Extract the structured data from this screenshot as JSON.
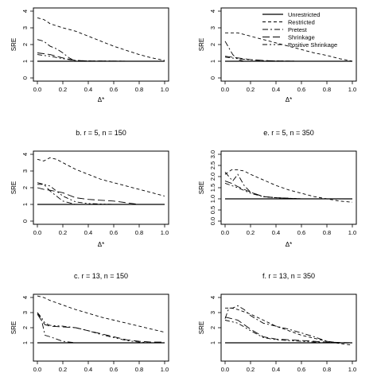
{
  "figure": {
    "legend_labels": [
      "Unrestricted",
      "Restricted",
      "Pretest",
      "Shrinkage",
      "Positive Shrinkage"
    ]
  },
  "chart_data": [
    {
      "type": "line",
      "title": "",
      "xlabel": "Δ*",
      "ylabel": "SRE",
      "xlim": [
        0,
        1
      ],
      "ylim": [
        0,
        4
      ],
      "x_ticks": [
        "0.0",
        "0.2",
        "0.4",
        "0.6",
        "0.8",
        "1.0"
      ],
      "y_ticks": [
        "0",
        "1",
        "2",
        "3",
        "4"
      ],
      "legend": false,
      "grid": false,
      "series": [
        {
          "name": "Unrestricted",
          "x": [
            0,
            1
          ],
          "y": [
            1,
            1
          ]
        },
        {
          "name": "Restricted",
          "x": [
            0,
            0.05,
            0.1,
            0.2,
            0.3,
            0.4,
            0.5,
            0.6,
            0.7,
            0.8,
            0.9,
            1.0
          ],
          "y": [
            3.6,
            3.5,
            3.25,
            3.0,
            2.8,
            2.5,
            2.2,
            1.9,
            1.65,
            1.4,
            1.2,
            1.05
          ]
        },
        {
          "name": "Pretest",
          "x": [
            0,
            0.05,
            0.1,
            0.15,
            0.2,
            0.25,
            0.3,
            0.4,
            0.6,
            0.8,
            1.0
          ],
          "y": [
            2.3,
            2.2,
            1.9,
            1.75,
            1.5,
            1.2,
            1.0,
            1.0,
            1.0,
            1.0,
            1.0
          ]
        },
        {
          "name": "Shrinkage",
          "x": [
            0,
            0.05,
            0.1,
            0.2,
            0.3,
            0.4,
            0.6,
            0.8,
            1.0
          ],
          "y": [
            1.5,
            1.45,
            1.4,
            1.2,
            1.05,
            1.02,
            1.01,
            1.0,
            1.0
          ]
        },
        {
          "name": "Positive Shrinkage",
          "x": [
            0,
            0.05,
            0.1,
            0.2,
            0.3,
            0.4,
            0.6,
            0.8,
            1.0
          ],
          "y": [
            1.4,
            1.35,
            1.3,
            1.15,
            1.05,
            1.02,
            1.01,
            1.0,
            1.0
          ]
        }
      ]
    },
    {
      "type": "line",
      "title": "b. r = 5, n = 150",
      "xlabel": "Δ*",
      "ylabel": "SRE",
      "xlim": [
        0,
        1
      ],
      "ylim": [
        0,
        4
      ],
      "x_ticks": [
        "0.0",
        "0.2",
        "0.4",
        "0.6",
        "0.8",
        "1.0"
      ],
      "y_ticks": [
        "0",
        "1",
        "2",
        "3",
        "4"
      ],
      "legend": false,
      "grid": false,
      "series": [
        {
          "name": "Unrestricted",
          "x": [
            0,
            1
          ],
          "y": [
            1,
            1
          ]
        },
        {
          "name": "Restricted",
          "x": [
            0,
            0.05,
            0.1,
            0.15,
            0.2,
            0.3,
            0.4,
            0.5,
            0.6,
            0.7,
            0.8,
            0.9,
            1.0
          ],
          "y": [
            3.7,
            3.6,
            3.8,
            3.7,
            3.5,
            3.1,
            2.8,
            2.5,
            2.3,
            2.1,
            1.9,
            1.7,
            1.5
          ]
        },
        {
          "name": "Pretest",
          "x": [
            0,
            0.05,
            0.1,
            0.15,
            0.2,
            0.3,
            0.4,
            0.6,
            0.8,
            1.0
          ],
          "y": [
            2.3,
            2.2,
            1.8,
            1.5,
            1.2,
            1.0,
            1.0,
            1.0,
            1.0,
            1.0
          ]
        },
        {
          "name": "Shrinkage",
          "x": [
            0,
            0.05,
            0.1,
            0.2,
            0.3,
            0.4,
            0.5,
            0.6,
            0.7,
            0.8,
            1.0
          ],
          "y": [
            2.0,
            1.9,
            1.85,
            1.7,
            1.4,
            1.3,
            1.25,
            1.2,
            1.1,
            1.0,
            1.0
          ]
        },
        {
          "name": "Positive Shrinkage",
          "x": [
            0,
            0.05,
            0.1,
            0.2,
            0.3,
            0.4,
            0.6,
            0.8,
            1.0
          ],
          "y": [
            2.2,
            2.2,
            2.1,
            1.5,
            1.15,
            1.05,
            1.0,
            1.0,
            1.0
          ]
        }
      ]
    },
    {
      "type": "line",
      "title": "c. r = 13, n = 150",
      "xlabel": "",
      "ylabel": "SRE",
      "xlim": [
        0,
        1
      ],
      "ylim": [
        0,
        4
      ],
      "x_ticks": [
        "0.0",
        "0.2",
        "0.4",
        "0.6",
        "0.8",
        "1.0"
      ],
      "y_ticks": [
        "1",
        "2",
        "3",
        "4"
      ],
      "legend": false,
      "grid": false,
      "series": [
        {
          "name": "Unrestricted",
          "x": [
            0,
            1
          ],
          "y": [
            1,
            1
          ]
        },
        {
          "name": "Restricted",
          "x": [
            0,
            0.05,
            0.1,
            0.2,
            0.3,
            0.4,
            0.5,
            0.6,
            0.7,
            0.8,
            0.9,
            1.0
          ],
          "y": [
            4.1,
            4.0,
            3.8,
            3.5,
            3.2,
            2.95,
            2.7,
            2.5,
            2.3,
            2.1,
            1.9,
            1.7
          ]
        },
        {
          "name": "Pretest",
          "x": [
            0,
            0.03,
            0.06,
            0.1,
            0.15,
            0.2,
            0.3,
            0.4,
            0.6,
            0.8,
            1.0
          ],
          "y": [
            3.0,
            2.6,
            1.5,
            1.4,
            1.25,
            1.1,
            1.0,
            1.0,
            1.0,
            1.0,
            1.0
          ]
        },
        {
          "name": "Shrinkage",
          "x": [
            0,
            0.03,
            0.06,
            0.1,
            0.2,
            0.3,
            0.4,
            0.5,
            0.6,
            0.7,
            0.8,
            0.9,
            1.0
          ],
          "y": [
            2.9,
            2.5,
            2.2,
            2.1,
            2.05,
            2.0,
            1.8,
            1.6,
            1.4,
            1.2,
            1.1,
            1.05,
            1.05
          ]
        },
        {
          "name": "Positive Shrinkage",
          "x": [
            0,
            0.03,
            0.06,
            0.1,
            0.2,
            0.3,
            0.4,
            0.5,
            0.6,
            0.7,
            0.8,
            0.9,
            1.0
          ],
          "y": [
            3.0,
            2.7,
            2.3,
            2.15,
            2.1,
            2.0,
            1.8,
            1.55,
            1.35,
            1.15,
            1.05,
            1.0,
            1.0
          ]
        }
      ]
    },
    {
      "type": "line",
      "title": "",
      "xlabel": "Δ*",
      "ylabel": "SRE",
      "xlim": [
        0,
        1
      ],
      "ylim": [
        0,
        4
      ],
      "x_ticks": [
        "0.0",
        "0.2",
        "0.4",
        "0.6",
        "0.8",
        "1.0"
      ],
      "y_ticks": [
        "0",
        "1",
        "2",
        "3",
        "4"
      ],
      "legend": true,
      "legend_position": "top-right",
      "grid": false,
      "series": [
        {
          "name": "Unrestricted",
          "x": [
            0,
            1
          ],
          "y": [
            1,
            1
          ]
        },
        {
          "name": "Restricted",
          "x": [
            0,
            0.05,
            0.1,
            0.2,
            0.3,
            0.4,
            0.5,
            0.6,
            0.7,
            0.8,
            0.9,
            1.0
          ],
          "y": [
            2.7,
            2.7,
            2.7,
            2.5,
            2.3,
            2.1,
            1.9,
            1.7,
            1.5,
            1.35,
            1.15,
            1.0
          ]
        },
        {
          "name": "Pretest",
          "x": [
            0,
            0.03,
            0.06,
            0.1,
            0.15,
            0.2,
            0.3,
            0.4,
            0.6,
            0.8,
            1.0
          ],
          "y": [
            2.2,
            1.8,
            1.4,
            1.1,
            1.0,
            1.0,
            1.0,
            1.0,
            1.0,
            1.0,
            1.0
          ]
        },
        {
          "name": "Shrinkage",
          "x": [
            0,
            0.05,
            0.1,
            0.2,
            0.3,
            0.4,
            0.6,
            0.8,
            1.0
          ],
          "y": [
            1.3,
            1.25,
            1.2,
            1.1,
            1.05,
            1.02,
            1.0,
            1.0,
            1.0
          ]
        },
        {
          "name": "Positive Shrinkage",
          "x": [
            0,
            0.05,
            0.1,
            0.2,
            0.3,
            0.4,
            0.6,
            0.8,
            1.0
          ],
          "y": [
            1.25,
            1.2,
            1.15,
            1.08,
            1.04,
            1.02,
            1.0,
            1.0,
            1.0
          ]
        }
      ]
    },
    {
      "type": "line",
      "title": "e. r = 5, n = 350",
      "xlabel": "Δ*",
      "ylabel": "SRE",
      "xlim": [
        0,
        1
      ],
      "ylim": [
        0,
        3
      ],
      "x_ticks": [
        "0.0",
        "0.2",
        "0.4",
        "0.6",
        "0.8",
        "1.0"
      ],
      "y_ticks": [
        "0.0",
        "0.5",
        "1.0",
        "1.5",
        "2.0",
        "2.5",
        "3.0"
      ],
      "legend": false,
      "grid": false,
      "series": [
        {
          "name": "Unrestricted",
          "x": [
            0,
            1
          ],
          "y": [
            1,
            1
          ]
        },
        {
          "name": "Restricted",
          "x": [
            0,
            0.05,
            0.1,
            0.15,
            0.2,
            0.3,
            0.4,
            0.5,
            0.6,
            0.7,
            0.8,
            0.9,
            1.0
          ],
          "y": [
            2.1,
            2.3,
            2.3,
            2.25,
            2.1,
            1.85,
            1.6,
            1.4,
            1.25,
            1.1,
            1.0,
            0.9,
            0.85
          ]
        },
        {
          "name": "Pretest",
          "x": [
            0,
            0.03,
            0.06,
            0.1,
            0.15,
            0.2,
            0.3,
            0.4,
            0.6,
            0.8,
            1.0
          ],
          "y": [
            2.2,
            2.0,
            1.8,
            2.1,
            1.6,
            1.3,
            1.1,
            1.05,
            1.0,
            1.0,
            1.0
          ]
        },
        {
          "name": "Shrinkage",
          "x": [
            0,
            0.05,
            0.1,
            0.2,
            0.3,
            0.4,
            0.6,
            0.8,
            1.0
          ],
          "y": [
            1.8,
            1.7,
            1.55,
            1.3,
            1.1,
            1.05,
            1.0,
            1.0,
            1.0
          ]
        },
        {
          "name": "Positive Shrinkage",
          "x": [
            0,
            0.05,
            0.1,
            0.2,
            0.3,
            0.4,
            0.6,
            0.8,
            1.0
          ],
          "y": [
            1.7,
            1.6,
            1.5,
            1.25,
            1.1,
            1.05,
            1.0,
            1.0,
            1.0
          ]
        }
      ]
    },
    {
      "type": "line",
      "title": "f. r = 13, n = 350",
      "xlabel": "",
      "ylabel": "SRE",
      "xlim": [
        0,
        1
      ],
      "ylim": [
        0,
        4
      ],
      "x_ticks": [
        "0.0",
        "0.2",
        "0.4",
        "0.6",
        "0.8",
        "1.0"
      ],
      "y_ticks": [
        "1",
        "2",
        "3",
        "4"
      ],
      "legend": false,
      "grid": false,
      "series": [
        {
          "name": "Unrestricted",
          "x": [
            0,
            1
          ],
          "y": [
            1,
            1
          ]
        },
        {
          "name": "Restricted",
          "x": [
            0,
            0.05,
            0.1,
            0.2,
            0.3,
            0.4,
            0.5,
            0.6,
            0.7,
            0.8,
            0.9,
            1.0
          ],
          "y": [
            3.3,
            3.3,
            3.2,
            2.9,
            2.5,
            2.1,
            1.8,
            1.5,
            1.3,
            1.1,
            0.95,
            0.85
          ]
        },
        {
          "name": "Pretest",
          "x": [
            0,
            0.03,
            0.06,
            0.1,
            0.15,
            0.2,
            0.3,
            0.4,
            0.5,
            0.6,
            0.7,
            0.8,
            0.9,
            1.0
          ],
          "y": [
            2.6,
            3.3,
            3.3,
            3.45,
            3.2,
            2.8,
            2.3,
            2.1,
            1.9,
            1.65,
            1.4,
            1.1,
            1.0,
            1.0
          ]
        },
        {
          "name": "Shrinkage",
          "x": [
            0,
            0.05,
            0.1,
            0.2,
            0.3,
            0.4,
            0.6,
            0.8,
            1.0
          ],
          "y": [
            2.7,
            2.6,
            2.5,
            1.9,
            1.4,
            1.25,
            1.15,
            1.05,
            1.0
          ]
        },
        {
          "name": "Positive Shrinkage",
          "x": [
            0,
            0.05,
            0.1,
            0.2,
            0.3,
            0.4,
            0.6,
            0.8,
            1.0
          ],
          "y": [
            2.5,
            2.4,
            2.3,
            1.8,
            1.35,
            1.2,
            1.1,
            1.0,
            1.0
          ]
        }
      ]
    }
  ]
}
